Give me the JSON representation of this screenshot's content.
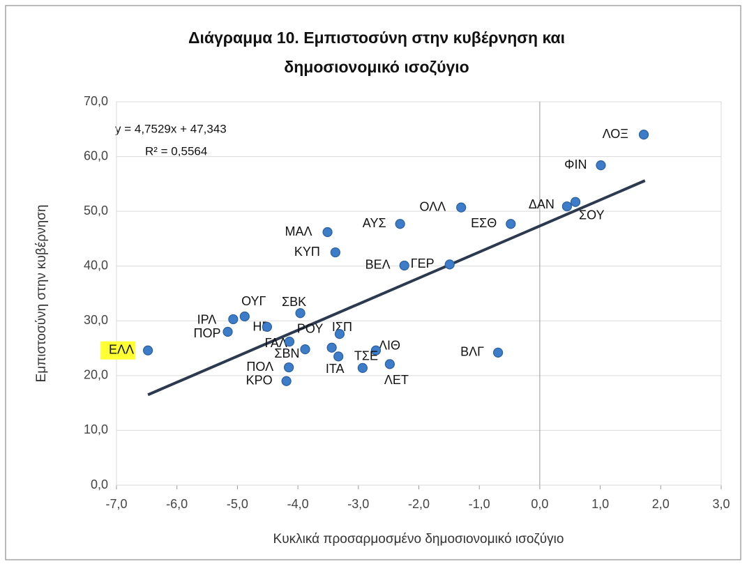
{
  "chart_data": {
    "type": "scatter",
    "title": [
      "Διάγραμμα 10. Εμπιστοσύνη στην κυβέρνηση και",
      "δημοσιονομικό ισοζύγιο"
    ],
    "x_label": "Κυκλικά προσαρμοσμένο δημοσιονομικό ισοζύγιο",
    "y_label": "Εμπιστοσύνη στην κυβέρνηση",
    "annotations": [
      "y = 4,7529x + 47,343",
      "R² = 0,5564"
    ],
    "highlight": "ΕΛΛ",
    "highlight_color": "#ffff33",
    "color": "#3d7cc9",
    "trend_color": "#2b3a4e",
    "xlim": [
      -7,
      3
    ],
    "ylim": [
      0,
      70
    ],
    "xticks": [
      {
        "value": -7,
        "label": "-7,0"
      },
      {
        "value": -6,
        "label": "-6,0"
      },
      {
        "value": -5,
        "label": "-5,0"
      },
      {
        "value": -4,
        "label": "-4,0"
      },
      {
        "value": -3,
        "label": "-3,0"
      },
      {
        "value": -2,
        "label": "-2,0"
      },
      {
        "value": -1,
        "label": "-1,0"
      },
      {
        "value": 0,
        "label": "0,0"
      },
      {
        "value": 1,
        "label": "1,0"
      },
      {
        "value": 2,
        "label": "2,0"
      },
      {
        "value": 3,
        "label": "3,0"
      }
    ],
    "yticks": [
      {
        "value": 0,
        "label": "0,0"
      },
      {
        "value": 10,
        "label": "10,0"
      },
      {
        "value": 20,
        "label": "20,0"
      },
      {
        "value": 30,
        "label": "30,0"
      },
      {
        "value": 40,
        "label": "40,0"
      },
      {
        "value": 50,
        "label": "50,0"
      },
      {
        "value": 60,
        "label": "60,0"
      },
      {
        "value": 70,
        "label": "70,0"
      }
    ],
    "grid": true,
    "labels": [
      "ΕΛΛ",
      "ΛΟΞ",
      "ΦΙΝ",
      "ΣΟΥ",
      "ΔΑΝ",
      "ΕΣΘ",
      "ΒΛΓ",
      "ΟΛΛ",
      "ΓΕΡ",
      "ΒΕΛ",
      "ΑΥΣ",
      "ΛΙΘ",
      "ΛΕΤ",
      "ΤΣΕ",
      "ΙΣΠ",
      "ΙΤΑ",
      "ΣΒΚ",
      "ΚΥΠ",
      "ΜΑΛ",
      "ΡΟΥ",
      "ΣΒΝ",
      "ΓΑΛ",
      "ΠΟΛ",
      "ΚΡΟ",
      "ΗΒ",
      "ΟΥΓ",
      "ΙΡΛ",
      "ΠΟΡ"
    ],
    "x": [
      -6.48,
      1.72,
      1.01,
      0.59,
      0.45,
      -0.48,
      -0.69,
      -1.3,
      -1.49,
      -2.24,
      -2.31,
      -2.71,
      -2.48,
      -2.93,
      -3.31,
      -3.33,
      -3.96,
      -3.38,
      -3.51,
      -3.44,
      -3.88,
      -4.14,
      -4.15,
      -4.19,
      -4.51,
      -4.88,
      -5.07,
      -5.16
    ],
    "y": [
      24.6,
      64.0,
      58.4,
      51.7,
      50.9,
      47.7,
      24.2,
      50.7,
      40.3,
      40.1,
      47.7,
      24.6,
      22.1,
      21.4,
      27.6,
      23.5,
      31.4,
      42.5,
      46.2,
      25.1,
      24.8,
      26.2,
      21.5,
      19.0,
      28.9,
      30.8,
      30.3,
      28.0
    ],
    "trendline": {
      "x": [
        -6.48,
        1.74
      ],
      "y": [
        16.5,
        55.6
      ]
    }
  }
}
